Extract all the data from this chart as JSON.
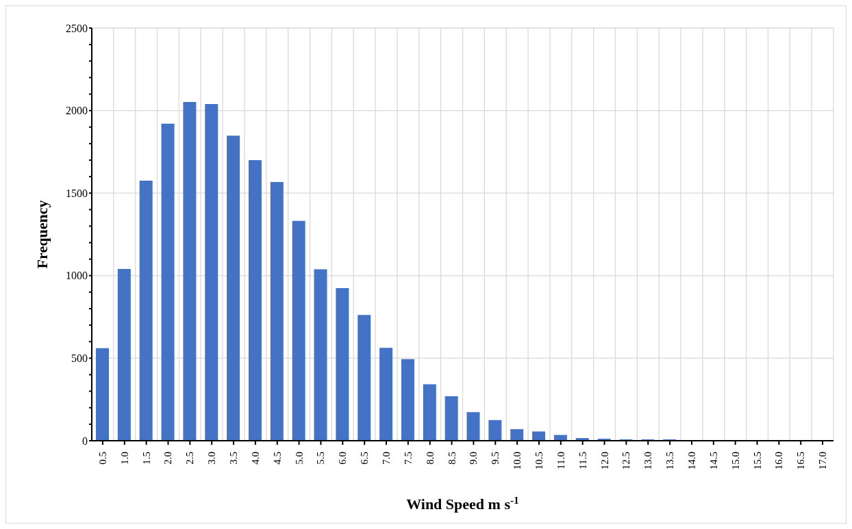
{
  "chart_data": {
    "type": "bar",
    "xlabel": "Wind Speed m s$^{-1}$",
    "ylabel": "Frequency",
    "categories": [
      "0.5",
      "1.0",
      "1.5",
      "2.0",
      "2.5",
      "3.0",
      "3.5",
      "4.0",
      "4.5",
      "5.0",
      "5.5",
      "6.0",
      "6.5",
      "7.0",
      "7.5",
      "8.0",
      "8.5",
      "9.0",
      "9.5",
      "10.0",
      "10.5",
      "11.0",
      "11.5",
      "12.0",
      "12.5",
      "13.0",
      "13.5",
      "14.0",
      "14.5",
      "15.0",
      "15.5",
      "16.0",
      "16.5",
      "17.0"
    ],
    "values": [
      561,
      1041,
      1575,
      1921,
      2052,
      2040,
      1848,
      1700,
      1567,
      1332,
      1039,
      925,
      762,
      563,
      494,
      342,
      269,
      173,
      125,
      70,
      56,
      35,
      16,
      12,
      8,
      8,
      8,
      0,
      0,
      0,
      0,
      0,
      0,
      0
    ],
    "color": "#4472c4",
    "ylim": [
      0,
      2500
    ],
    "yticks": [
      0,
      {
        "value": 100,
        "label": null
      },
      {
        "value": 200,
        "label": null
      },
      {
        "value": 300,
        "label": null
      },
      {
        "value": 400,
        "label": null
      },
      500,
      {
        "value": 600,
        "label": null
      },
      {
        "value": 700,
        "label": null
      },
      {
        "value": 800,
        "label": null
      },
      {
        "value": 900,
        "label": null
      },
      1000,
      {
        "value": 1100,
        "label": null
      },
      {
        "value": 1200,
        "label": null
      },
      {
        "value": 1300,
        "label": null
      },
      {
        "value": 1400,
        "label": null
      },
      1500,
      {
        "value": 1600,
        "label": null
      },
      {
        "value": 1700,
        "label": null
      },
      {
        "value": 1800,
        "label": null
      },
      {
        "value": 1900,
        "label": null
      },
      2000,
      {
        "value": 2100,
        "label": null
      },
      {
        "value": 2200,
        "label": null
      },
      {
        "value": 2300,
        "label": null
      },
      {
        "value": 2400,
        "label": null
      },
      2500
    ],
    "grid": true
  }
}
